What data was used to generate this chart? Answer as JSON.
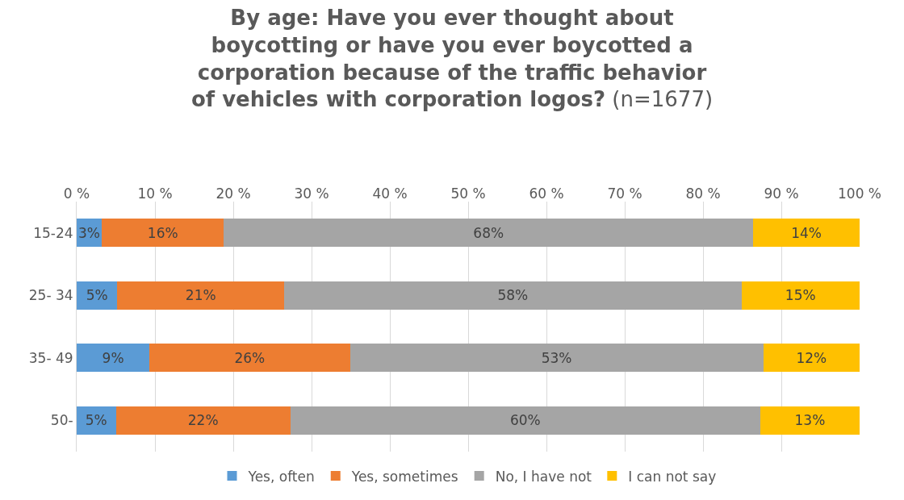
{
  "chart_data": {
    "type": "bar",
    "orientation": "horizontal",
    "stacked": true,
    "title": "By age: Have you ever thought about boycotting or have you ever boycotted a corporation because of the traffic behavior of vehicles with corporation logos? (n=1677)",
    "categories": [
      "15-24",
      "25- 34",
      "35- 49",
      "50-"
    ],
    "series": [
      {
        "name": "Yes, often",
        "color": "#5b9bd5",
        "values": [
          3.2,
          5.2,
          9.3,
          5.0
        ],
        "value_labels": [
          "3%",
          "5%",
          "9%",
          "5%"
        ]
      },
      {
        "name": "Yes, sometimes",
        "color": "#ed7d31",
        "values": [
          15.6,
          21.3,
          25.6,
          22.3
        ],
        "value_labels": [
          "16%",
          "21%",
          "26%",
          "22%"
        ]
      },
      {
        "name": "No, I have not",
        "color": "#a5a5a5",
        "values": [
          67.6,
          58.4,
          52.8,
          60.0
        ],
        "value_labels": [
          "68%",
          "58%",
          "53%",
          "60%"
        ]
      },
      {
        "name": "I can not say",
        "color": "#ffc000",
        "values": [
          13.6,
          15.1,
          12.3,
          12.7
        ],
        "value_labels": [
          "14%",
          "15%",
          "12%",
          "13%"
        ]
      }
    ],
    "xlim": [
      0,
      100
    ],
    "xticks": [
      {
        "value": 0,
        "label": "0 %"
      },
      {
        "value": 10,
        "label": "10 %"
      },
      {
        "value": 20,
        "label": "20 %"
      },
      {
        "value": 30,
        "label": "30 %"
      },
      {
        "value": 40,
        "label": "40 %"
      },
      {
        "value": 50,
        "label": "50 %"
      },
      {
        "value": 60,
        "label": "60 %"
      },
      {
        "value": 70,
        "label": "70 %"
      },
      {
        "value": 80,
        "label": "80 %"
      },
      {
        "value": 90,
        "label": "90 %"
      },
      {
        "value": 100,
        "label": "100 %"
      }
    ],
    "grid": "x",
    "legend": "bottom"
  }
}
